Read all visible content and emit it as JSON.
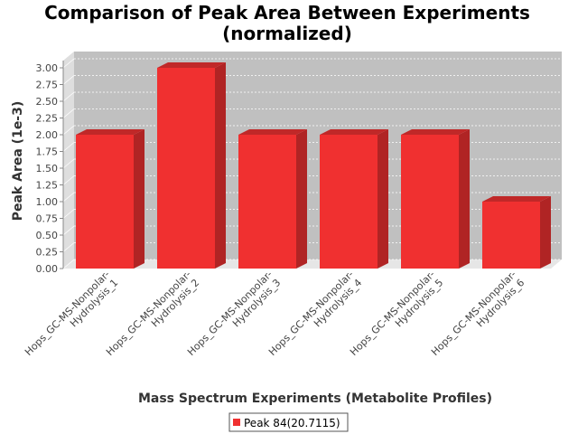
{
  "chart_data": {
    "type": "bar",
    "title_line1": "Comparison of Peak Area Between Experiments",
    "title_line2": "(normalized)",
    "xlabel": "Mass Spectrum Experiments (Metabolite Profiles)",
    "ylabel": "Peak Area (1e-3)",
    "categories": [
      [
        "Hops_GC-MS-Nonpolar-",
        "Hydrolysis_1"
      ],
      [
        "Hops_GC-MS-Nonpolar-",
        "Hydrolysis_2"
      ],
      [
        "Hops_GC-MS-Nonpolar-",
        "Hydrolysis_3"
      ],
      [
        "Hops_GC-MS-Nonpolar-",
        "Hydrolysis_4"
      ],
      [
        "Hops_GC-MS-Nonpolar-",
        "Hydrolysis_5"
      ],
      [
        "Hops_GC-MS-Nonpolar-",
        "Hydrolysis_6"
      ]
    ],
    "series": [
      {
        "name": "Peak 84(20.7115)",
        "values": [
          2.0,
          3.0,
          2.0,
          2.0,
          2.0,
          1.0
        ]
      }
    ],
    "ylim": [
      0,
      3.0
    ],
    "yticks": [
      "0.00",
      "0.25",
      "0.50",
      "0.75",
      "1.00",
      "1.25",
      "1.50",
      "1.75",
      "2.00",
      "2.25",
      "2.50",
      "2.75",
      "3.00"
    ],
    "grid": true,
    "legend_position": "bottom",
    "colors": {
      "bar": "#f03030",
      "bar_top": "#c02828",
      "bar_side": "#b02424",
      "plot_bg": "#c0c0c0",
      "wall": "#dedede",
      "floor": "#e6e6e6"
    }
  }
}
